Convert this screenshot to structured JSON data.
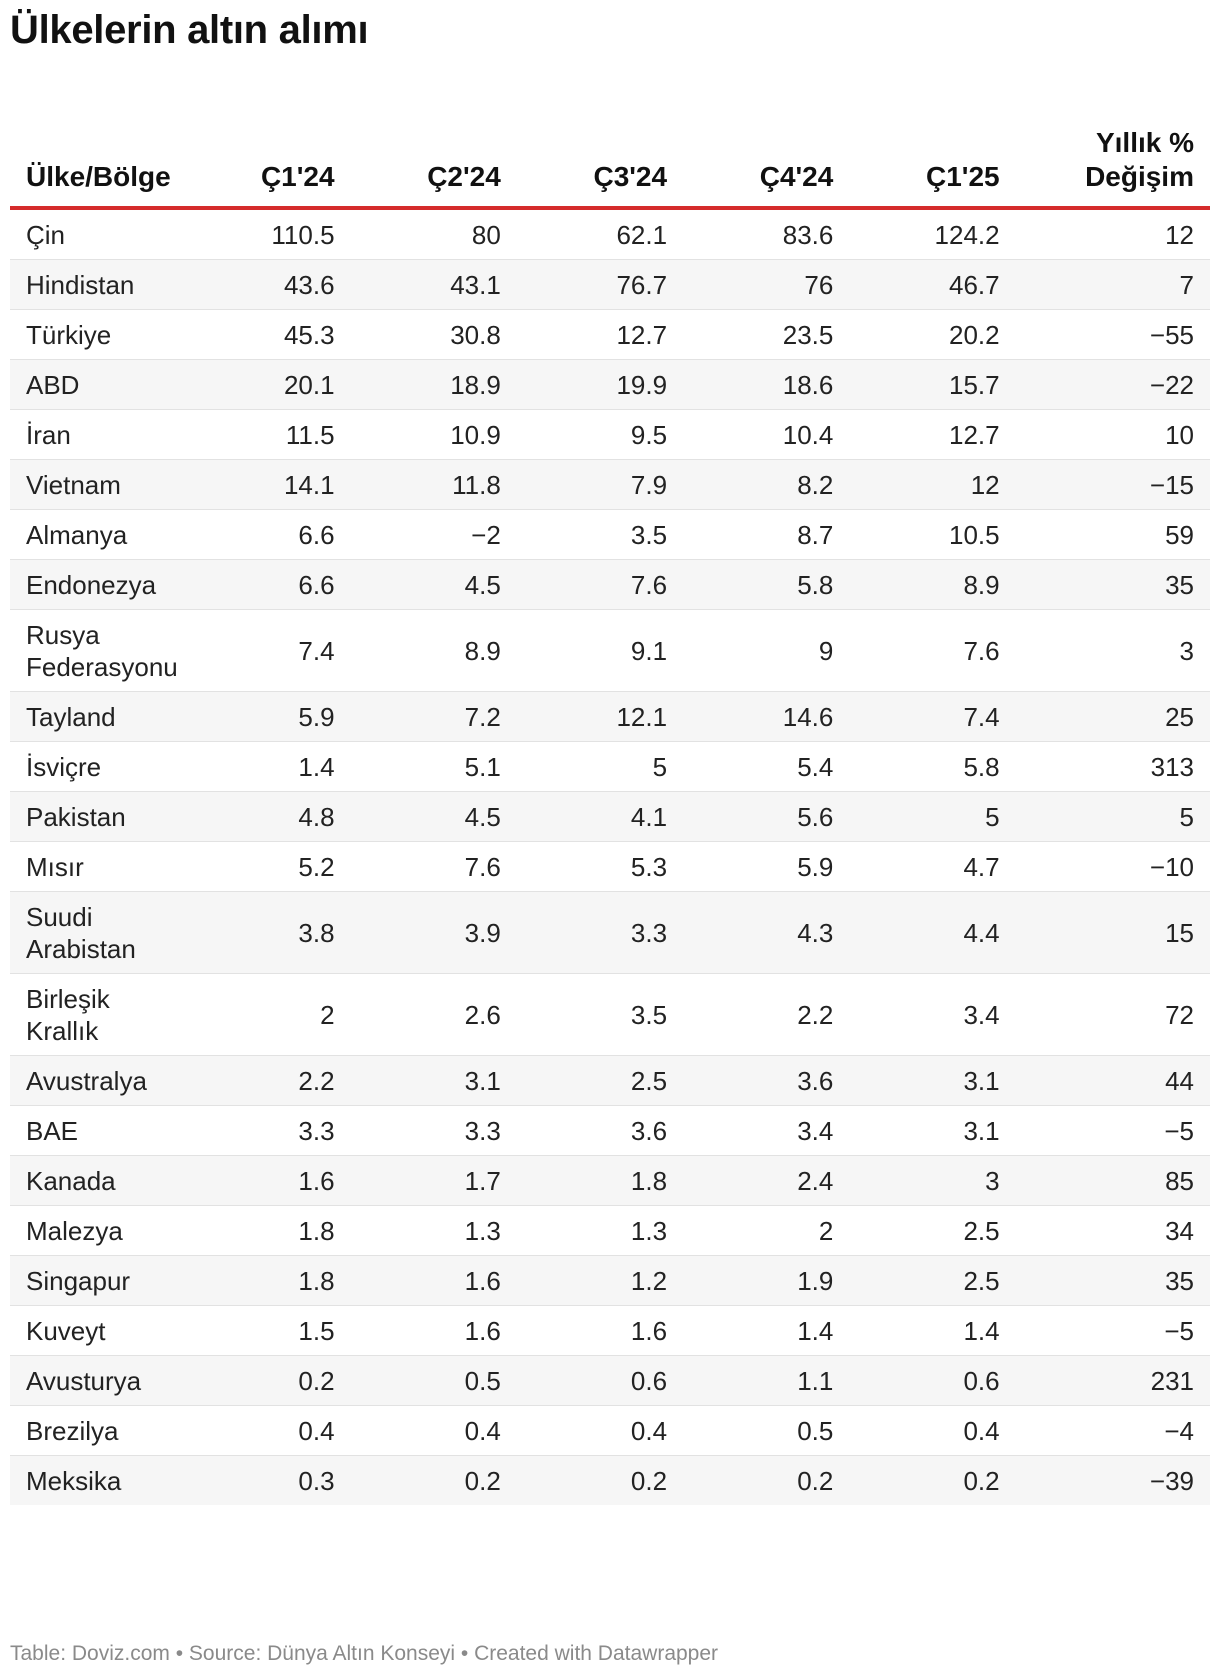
{
  "title": "Ülkelerin altın alımı",
  "footer": "Table: Doviz.com • Source: Dünya Altın Konseyi • Created with Datawrapper",
  "colors": {
    "header_rule": "#d52b2b",
    "stripe": "#f6f6f6",
    "row_rule": "#e2e2e2",
    "footer_text": "#8a8a8a"
  },
  "chart_data": {
    "type": "table",
    "title": "Ülkelerin altın alımı",
    "columns": [
      "Ülke/Bölge",
      "Ç1'24",
      "Ç2'24",
      "Ç3'24",
      "Ç4'24",
      "Ç1'25",
      "Yıllık % Değişim"
    ],
    "rows": [
      [
        "Çin",
        "110.5",
        "80",
        "62.1",
        "83.6",
        "124.2",
        "12"
      ],
      [
        "Hindistan",
        "43.6",
        "43.1",
        "76.7",
        "76",
        "46.7",
        "7"
      ],
      [
        "Türkiye",
        "45.3",
        "30.8",
        "12.7",
        "23.5",
        "20.2",
        "−55"
      ],
      [
        "ABD",
        "20.1",
        "18.9",
        "19.9",
        "18.6",
        "15.7",
        "−22"
      ],
      [
        "İran",
        "11.5",
        "10.9",
        "9.5",
        "10.4",
        "12.7",
        "10"
      ],
      [
        "Vietnam",
        "14.1",
        "11.8",
        "7.9",
        "8.2",
        "12",
        "−15"
      ],
      [
        "Almanya",
        "6.6",
        "−2",
        "3.5",
        "8.7",
        "10.5",
        "59"
      ],
      [
        "Endonezya",
        "6.6",
        "4.5",
        "7.6",
        "5.8",
        "8.9",
        "35"
      ],
      [
        "Rusya Federasyonu",
        "7.4",
        "8.9",
        "9.1",
        "9",
        "7.6",
        "3"
      ],
      [
        "Tayland",
        "5.9",
        "7.2",
        "12.1",
        "14.6",
        "7.4",
        "25"
      ],
      [
        "İsviçre",
        "1.4",
        "5.1",
        "5",
        "5.4",
        "5.8",
        "313"
      ],
      [
        "Pakistan",
        "4.8",
        "4.5",
        "4.1",
        "5.6",
        "5",
        "5"
      ],
      [
        "Mısır",
        "5.2",
        "7.6",
        "5.3",
        "5.9",
        "4.7",
        "−10"
      ],
      [
        "Suudi Arabistan",
        "3.8",
        "3.9",
        "3.3",
        "4.3",
        "4.4",
        "15"
      ],
      [
        "Birleşik Krallık",
        "2",
        "2.6",
        "3.5",
        "2.2",
        "3.4",
        "72"
      ],
      [
        "Avustralya",
        "2.2",
        "3.1",
        "2.5",
        "3.6",
        "3.1",
        "44"
      ],
      [
        "BAE",
        "3.3",
        "3.3",
        "3.6",
        "3.4",
        "3.1",
        "−5"
      ],
      [
        "Kanada",
        "1.6",
        "1.7",
        "1.8",
        "2.4",
        "3",
        "85"
      ],
      [
        "Malezya",
        "1.8",
        "1.3",
        "1.3",
        "2",
        "2.5",
        "34"
      ],
      [
        "Singapur",
        "1.8",
        "1.6",
        "1.2",
        "1.9",
        "2.5",
        "35"
      ],
      [
        "Kuveyt",
        "1.5",
        "1.6",
        "1.6",
        "1.4",
        "1.4",
        "−5"
      ],
      [
        "Avusturya",
        "0.2",
        "0.5",
        "0.6",
        "1.1",
        "0.6",
        "231"
      ],
      [
        "Brezilya",
        "0.4",
        "0.4",
        "0.4",
        "0.5",
        "0.4",
        "−4"
      ],
      [
        "Meksika",
        "0.3",
        "0.2",
        "0.2",
        "0.2",
        "0.2",
        "−39"
      ]
    ]
  }
}
